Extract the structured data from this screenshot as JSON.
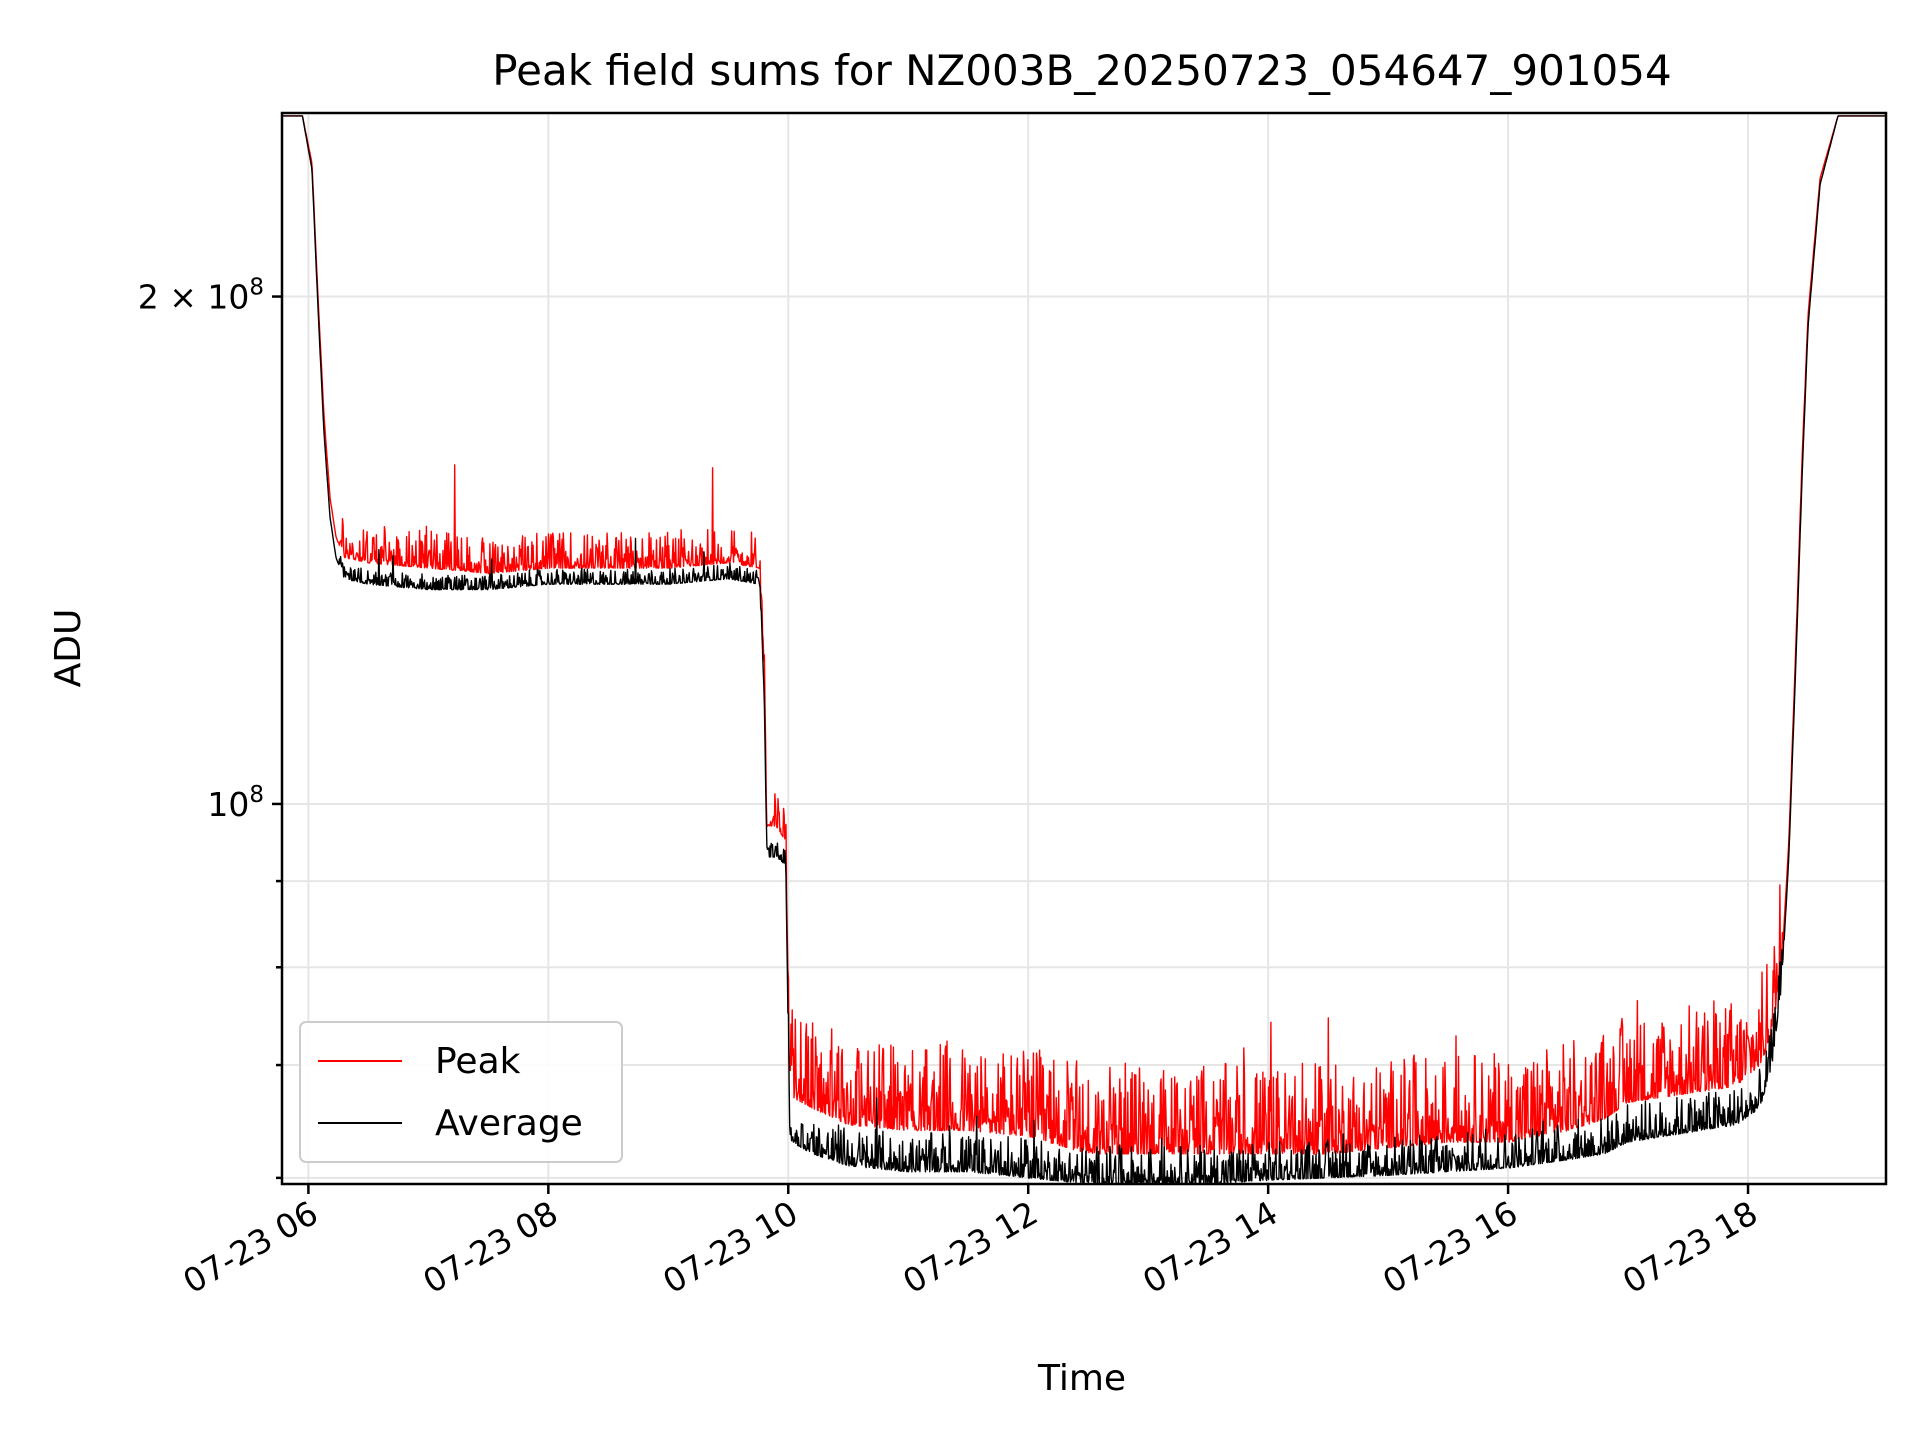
{
  "chart_data": {
    "type": "line",
    "title": "Peak field sums for NZ003B_20250723_054647_901054",
    "xlabel": "Time",
    "ylabel": "ADU",
    "y_scale": "log",
    "ylim": [
      59500000,
      257000000
    ],
    "xlim_hours": [
      5.78,
      19.15
    ],
    "x_ticks": [
      {
        "hour": 6,
        "label": "07-23 06"
      },
      {
        "hour": 8,
        "label": "07-23 08"
      },
      {
        "hour": 10,
        "label": "07-23 10"
      },
      {
        "hour": 12,
        "label": "07-23 12"
      },
      {
        "hour": 14,
        "label": "07-23 14"
      },
      {
        "hour": 16,
        "label": "07-23 16"
      },
      {
        "hour": 18,
        "label": "07-23 18"
      }
    ],
    "y_major_ticks": [
      {
        "value": 100000000,
        "base": "10",
        "exp": "8",
        "coef": ""
      },
      {
        "value": 200000000,
        "base": "10",
        "exp": "8",
        "coef": "2 × "
      }
    ],
    "y_minor_ticks": [
      60000000,
      70000000,
      80000000,
      90000000
    ],
    "grid": true,
    "legend": {
      "position": "lower-left"
    },
    "series": [
      {
        "name": "Peak",
        "color": "#ff0000",
        "spike_amplitude": 0.06,
        "x_hours": [
          5.78,
          5.95,
          6.03,
          6.08,
          6.13,
          6.18,
          6.23,
          6.3,
          6.5,
          7.0,
          7.5,
          8.0,
          8.5,
          9.0,
          9.5,
          9.76,
          9.8,
          9.82,
          9.86,
          9.9,
          9.94,
          9.98,
          10.01,
          10.03,
          10.2,
          10.5,
          11.0,
          11.5,
          12.0,
          12.5,
          13.0,
          13.5,
          14.0,
          14.5,
          15.0,
          15.5,
          16.0,
          16.5,
          16.8,
          17.0,
          17.3,
          17.6,
          17.9,
          18.1,
          18.2,
          18.28,
          18.34,
          18.4,
          18.45,
          18.5,
          18.6,
          18.75,
          19.15
        ],
        "values": [
          256000000,
          256000000,
          240000000,
          200000000,
          170000000,
          152000000,
          144000000,
          140000000,
          139000000,
          138000000,
          137000000,
          138000000,
          138000000,
          138000000,
          139000000,
          138000000,
          120000000,
          97000000,
          97000000,
          97000000,
          96000000,
          95000000,
          68000000,
          67000000,
          66000000,
          64500000,
          64000000,
          64000000,
          63500000,
          62000000,
          62000000,
          62000000,
          62000000,
          62000000,
          62500000,
          63000000,
          63000000,
          64000000,
          65000000,
          66500000,
          67000000,
          67500000,
          68000000,
          70000000,
          73000000,
          80000000,
          95000000,
          125000000,
          160000000,
          195000000,
          235000000,
          256000000,
          256000000
        ]
      },
      {
        "name": "Average",
        "color": "#000000",
        "spike_amplitude": 0.025,
        "x_hours": [
          5.78,
          5.95,
          6.03,
          6.08,
          6.13,
          6.18,
          6.23,
          6.3,
          6.5,
          7.0,
          7.5,
          8.0,
          8.5,
          9.0,
          9.5,
          9.76,
          9.8,
          9.82,
          9.86,
          9.9,
          9.94,
          9.98,
          10.01,
          10.03,
          10.2,
          10.5,
          11.0,
          11.5,
          12.0,
          12.5,
          13.0,
          13.5,
          14.0,
          14.5,
          15.0,
          15.5,
          16.0,
          16.5,
          16.8,
          17.0,
          17.3,
          17.6,
          17.9,
          18.1,
          18.2,
          18.28,
          18.34,
          18.4,
          18.45,
          18.5,
          18.6,
          18.75,
          19.15
        ],
        "values": [
          256000000,
          256000000,
          238000000,
          197000000,
          166000000,
          148000000,
          140000000,
          136000000,
          135000000,
          134000000,
          134000000,
          135000000,
          135000000,
          135000000,
          136000000,
          135000000,
          116000000,
          93000000,
          93000000,
          93000000,
          92500000,
          92000000,
          64000000,
          63000000,
          62000000,
          61000000,
          60500000,
          60500000,
          60000000,
          59500000,
          59500000,
          59500000,
          59800000,
          60000000,
          60200000,
          60500000,
          60800000,
          61500000,
          62000000,
          63000000,
          63500000,
          64000000,
          64500000,
          66000000,
          70000000,
          78000000,
          93000000,
          122000000,
          156000000,
          192000000,
          233000000,
          256000000,
          256000000
        ]
      }
    ]
  }
}
